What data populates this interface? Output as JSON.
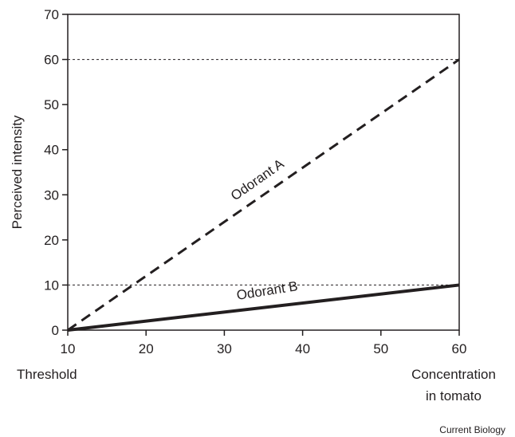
{
  "chart_data": {
    "type": "line",
    "title": "",
    "ylabel": "Perceived intensity",
    "xlabel_left": "Threshold",
    "xlabel_right_lines": [
      "Concentration",
      "in tomato"
    ],
    "xlim": [
      10,
      60
    ],
    "ylim": [
      0,
      70
    ],
    "x_ticks": [
      10,
      20,
      30,
      40,
      50,
      60
    ],
    "y_ticks": [
      0,
      10,
      20,
      30,
      40,
      50,
      60,
      70
    ],
    "grid": false,
    "reference_lines": [
      {
        "y": 60,
        "style": "dotted"
      },
      {
        "y": 10,
        "style": "dotted"
      }
    ],
    "series": [
      {
        "name": "Odorant A",
        "style": "dashed",
        "color": "#231f20",
        "x": [
          10,
          60
        ],
        "y": [
          0,
          60
        ]
      },
      {
        "name": "Odorant B",
        "style": "solid",
        "color": "#231f20",
        "x": [
          10,
          60
        ],
        "y": [
          0,
          10
        ]
      }
    ]
  },
  "credit": "Current Biology"
}
